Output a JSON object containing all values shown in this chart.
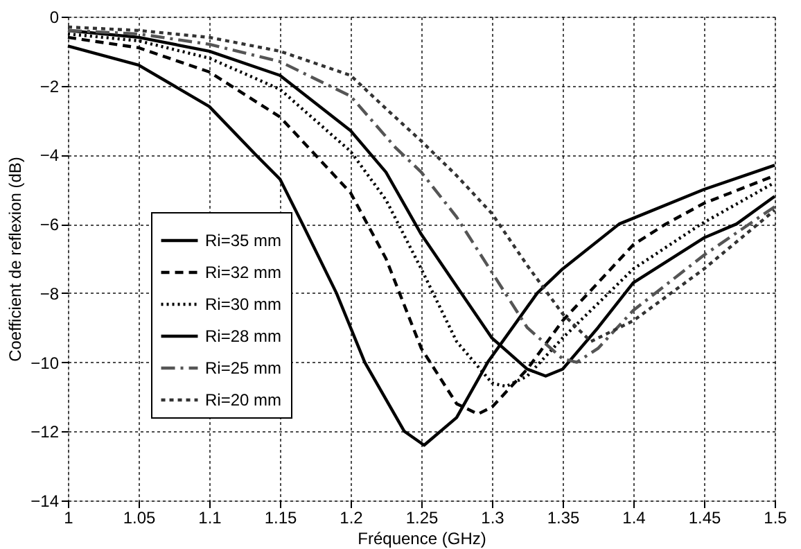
{
  "chart_data": {
    "type": "line",
    "xlabel": "Fréquence (GHz)",
    "ylabel": "Coefficient de reflexion (dB)",
    "xlim": [
      1,
      1.5
    ],
    "ylim": [
      -14,
      0
    ],
    "xticks": [
      1,
      1.05,
      1.1,
      1.15,
      1.2,
      1.25,
      1.3,
      1.35,
      1.4,
      1.45,
      1.5
    ],
    "yticks": [
      -14,
      -12,
      -10,
      -8,
      -6,
      -4,
      -2,
      0
    ],
    "grid": true,
    "legend": "bottom left",
    "marker": "none",
    "series": [
      {
        "name": "Ri=35 mm",
        "color": "#000000",
        "line_style": "solid",
        "x": [
          1,
          1.05,
          1.1,
          1.133,
          1.15,
          1.166,
          1.19,
          1.21,
          1.238,
          1.252,
          1.275,
          1.297,
          1.332,
          1.35,
          1.39,
          1.45,
          1.5
        ],
        "values": [
          -0.85,
          -1.4,
          -2.6,
          -4,
          -4.7,
          -6,
          -8,
          -10,
          -12,
          -12.4,
          -11.6,
          -10,
          -8,
          -7.3,
          -6,
          -5,
          -4.3
        ]
      },
      {
        "name": "Ri=32 mm",
        "color": "#000000",
        "line_style": "dashed",
        "x": [
          1,
          1.05,
          1.1,
          1.15,
          1.2,
          1.225,
          1.25,
          1.275,
          1.29,
          1.3,
          1.325,
          1.35,
          1.4,
          1.423,
          1.45,
          1.5
        ],
        "values": [
          -0.6,
          -0.9,
          -1.6,
          -2.9,
          -5.1,
          -7,
          -9.6,
          -11.2,
          -11.5,
          -11.3,
          -10.2,
          -8.8,
          -6.6,
          -6,
          -5.4,
          -4.6
        ]
      },
      {
        "name": "Ri=30 mm",
        "color": "#000000",
        "line_style": "dotted",
        "x": [
          1,
          1.05,
          1.1,
          1.15,
          1.2,
          1.225,
          1.25,
          1.275,
          1.3,
          1.31,
          1.325,
          1.35,
          1.4,
          1.448,
          1.5
        ],
        "values": [
          -0.5,
          -0.7,
          -1.2,
          -2.1,
          -3.9,
          -5.3,
          -7.3,
          -9.4,
          -10.6,
          -10.7,
          -10.4,
          -9.3,
          -7.3,
          -6,
          -4.8
        ]
      },
      {
        "name": "Ri=28 mm",
        "color": "#000000",
        "line_style": "solid",
        "x": [
          1,
          1.05,
          1.1,
          1.15,
          1.2,
          1.225,
          1.25,
          1.275,
          1.3,
          1.325,
          1.338,
          1.35,
          1.375,
          1.4,
          1.45,
          1.473,
          1.5
        ],
        "values": [
          -0.4,
          -0.6,
          -1,
          -1.7,
          -3.3,
          -4.5,
          -6.3,
          -7.8,
          -9.3,
          -10.2,
          -10.4,
          -10.2,
          -9,
          -7.7,
          -6.4,
          -6,
          -5.2
        ]
      },
      {
        "name": "Ri=25 mm",
        "color": "#555555",
        "line_style": "dashed",
        "x": [
          1,
          1.05,
          1.1,
          1.15,
          1.2,
          1.232,
          1.25,
          1.275,
          1.3,
          1.325,
          1.35,
          1.36,
          1.375,
          1.4,
          1.45,
          1.5
        ],
        "values": [
          -0.4,
          -0.5,
          -0.8,
          -1.3,
          -2.3,
          -3.8,
          -4.5,
          -5.8,
          -7.4,
          -9,
          -9.9,
          -10,
          -9.6,
          -8.5,
          -6.9,
          -5.5
        ]
      },
      {
        "name": "Ri=20 mm",
        "color": "#333333",
        "line_style": "dashed",
        "x": [
          1,
          1.05,
          1.1,
          1.15,
          1.2,
          1.226,
          1.25,
          1.275,
          1.3,
          1.325,
          1.35,
          1.37,
          1.4,
          1.45,
          1.5
        ],
        "values": [
          -0.3,
          -0.4,
          -0.6,
          -1,
          -1.7,
          -2.7,
          -3.6,
          -4.6,
          -5.7,
          -7.2,
          -8.6,
          -9.4,
          -8.8,
          -7.3,
          -5.6
        ]
      }
    ]
  }
}
